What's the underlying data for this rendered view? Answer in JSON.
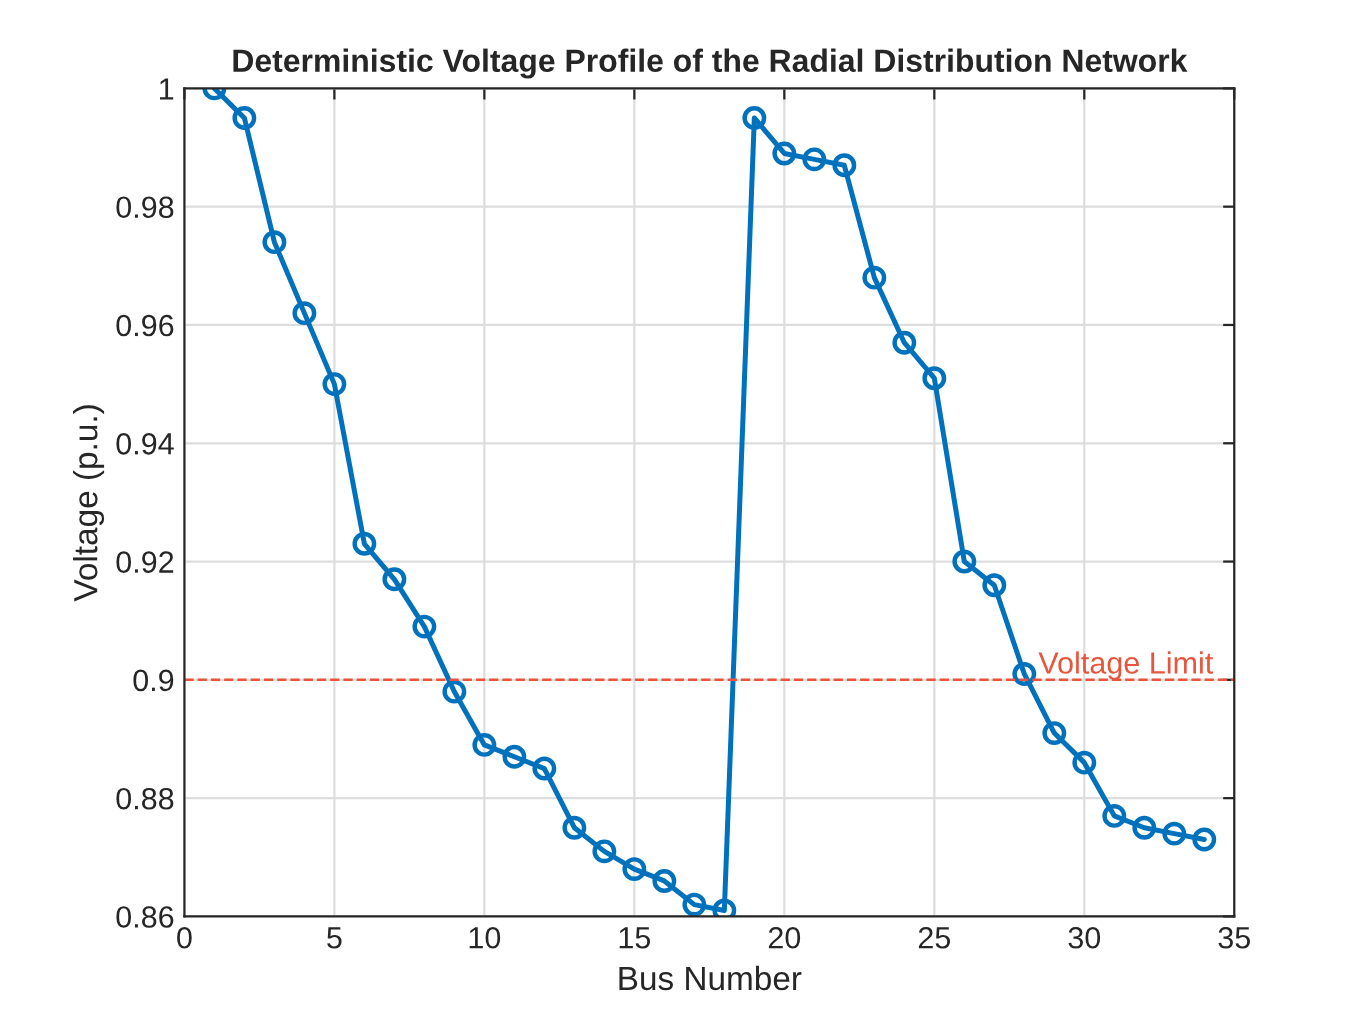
{
  "chart_data": {
    "type": "line",
    "title": "Deterministic Voltage Profile of the Radial Distribution Network",
    "xlabel": "Bus Number",
    "ylabel": "Voltage (p.u.)",
    "x": [
      1,
      2,
      3,
      4,
      5,
      6,
      7,
      8,
      9,
      10,
      11,
      12,
      13,
      14,
      15,
      16,
      17,
      18,
      19,
      20,
      21,
      22,
      23,
      24,
      25,
      26,
      27,
      28,
      29,
      30,
      31,
      32,
      33,
      34
    ],
    "series": [
      {
        "color": "#0072bd",
        "values": [
          1.0,
          0.995,
          0.974,
          0.962,
          0.95,
          0.923,
          0.917,
          0.909,
          0.898,
          0.889,
          0.887,
          0.885,
          0.875,
          0.871,
          0.868,
          0.866,
          0.862,
          0.861,
          0.995,
          0.989,
          0.988,
          0.987,
          0.968,
          0.957,
          0.951,
          0.92,
          0.916,
          0.901,
          0.891,
          0.886,
          0.877,
          0.875,
          0.874,
          0.873
        ]
      }
    ],
    "xlim": [
      0,
      35
    ],
    "xticks": [
      0,
      5,
      10,
      15,
      20,
      25,
      30,
      35
    ],
    "ylim": [
      0.86,
      1
    ],
    "yticks": [
      0.86,
      0.88,
      0.9,
      0.92,
      0.94,
      0.96,
      0.98,
      1
    ],
    "ref_lines": [
      {
        "axis": "y",
        "value": 0.9,
        "label": "Voltage Limit",
        "color": "#e8543c",
        "line_style": "dashed"
      }
    ],
    "grid": true,
    "marker": "circle",
    "line_style": "solid",
    "legend": false
  }
}
